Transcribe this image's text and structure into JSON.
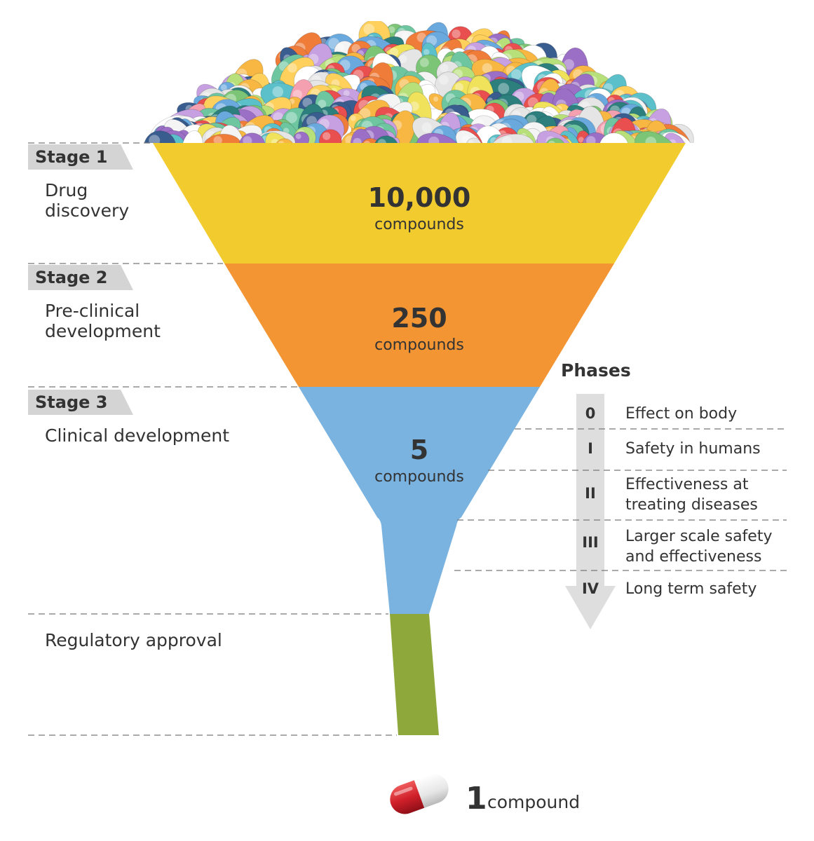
{
  "stages": [
    {
      "tag": "Stage 1",
      "description_lines": [
        "Drug",
        "discovery"
      ]
    },
    {
      "tag": "Stage 2",
      "description_lines": [
        "Pre-clinical",
        "development"
      ]
    },
    {
      "tag": "Stage 3",
      "description_lines": [
        "Clinical development"
      ]
    },
    {
      "tag": "",
      "description_lines": [
        "Regulatory approval"
      ]
    }
  ],
  "funnel_sections": [
    {
      "count": "10,000",
      "unit": "compounds",
      "color": "#f2cc2f"
    },
    {
      "count": "250",
      "unit": "compounds",
      "color": "#f49533"
    },
    {
      "count": "5",
      "unit": "compounds",
      "color": "#7ab3e0"
    },
    {
      "count": "",
      "unit": "",
      "color": "#8ea83b"
    }
  ],
  "phases": {
    "title": "Phases",
    "items": [
      {
        "numeral": "0",
        "lines": [
          "Effect on body"
        ]
      },
      {
        "numeral": "I",
        "lines": [
          "Safety in humans"
        ]
      },
      {
        "numeral": "II",
        "lines": [
          "Effectiveness at",
          "treating diseases"
        ]
      },
      {
        "numeral": "III",
        "lines": [
          "Larger scale safety",
          "and effectiveness"
        ]
      },
      {
        "numeral": "IV",
        "lines": [
          "Long term safety"
        ]
      }
    ]
  },
  "result": {
    "count": "1",
    "unit": "compound"
  },
  "colors": {
    "stage_tag": "#d4d4d4",
    "arrow": "#dedede",
    "text": "#333333",
    "divider": "#777777",
    "capsule_red": "#d0202a",
    "capsule_white": "#eeeeee"
  }
}
